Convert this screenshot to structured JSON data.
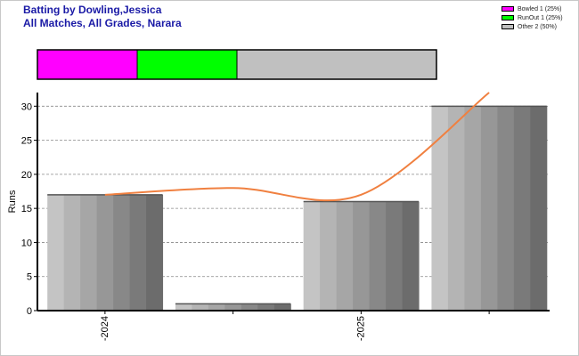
{
  "header": {
    "title_line1": "Batting by Dowling,Jessica",
    "title_line2": "All Matches, All Grades, Narara"
  },
  "legend": [
    {
      "label": "Bowled 1 (25%)",
      "color": "#ff00ff",
      "share": 0.25
    },
    {
      "label": "RunOut 1 (25%)",
      "color": "#00ff00",
      "share": 0.25
    },
    {
      "label": "Other 2 (50%)",
      "color": "#c0c0c0",
      "share": 0.5
    }
  ],
  "chart_data": {
    "type": "bar",
    "categories": [
      "2024",
      "",
      "2025",
      ""
    ],
    "ylabel": "Runs",
    "xlabel": "",
    "ylim": [
      0,
      32
    ],
    "yticks": [
      0,
      5,
      10,
      15,
      20,
      25,
      30
    ],
    "grid": true,
    "series": [
      {
        "values": [
          17,
          1,
          16,
          30
        ]
      }
    ],
    "trend_line": {
      "color": "#f08040",
      "values": [
        17,
        18,
        17,
        32
      ]
    },
    "dismissal_bar": [
      {
        "label": "Bowled",
        "count": 1,
        "color": "#ff00ff"
      },
      {
        "label": "RunOut",
        "count": 1,
        "color": "#00ff00"
      },
      {
        "label": "Other",
        "count": 2,
        "color": "#c0c0c0"
      }
    ]
  }
}
